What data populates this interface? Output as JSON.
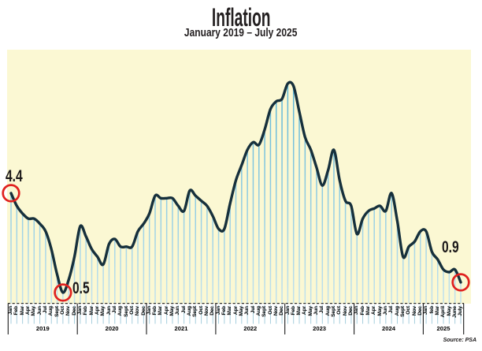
{
  "title": "Inflation",
  "subtitle": "January 2019 – July 2025",
  "source": "Source: PSA",
  "colors": {
    "plot_bg": "#fbf8d3",
    "stem_top": "#4fb0d4",
    "stem_bottom": "#c2e2ee",
    "strip_tick": "#a5cedd",
    "line": "#16303c",
    "highlight_circle": "#e0211f",
    "axis": "#1a1a1a"
  },
  "chart_data": {
    "type": "line",
    "title": "Inflation",
    "subtitle": "January 2019 – July 2025",
    "ylabel": "",
    "xlabel": "",
    "ylim": [
      0,
      9.9
    ],
    "grid": false,
    "legend": "none",
    "style": "smoothed line over vertical monthly stems",
    "x_axis": {
      "years": [
        {
          "label": "2019",
          "months": [
            "Jan",
            "Feb",
            "Mar",
            "Apr",
            "May",
            "Jun",
            "Jul",
            "Aug",
            "Sept",
            "Oct",
            "Nov",
            "Dec"
          ]
        },
        {
          "label": "2020",
          "months": [
            "Jan",
            "Feb",
            "Mar",
            "Apr",
            "May",
            "Jun",
            "Jul",
            "Aug",
            "Sept",
            "Oct",
            "Nov",
            "Dec"
          ]
        },
        {
          "label": "2021",
          "months": [
            "Jan",
            "Feb",
            "Mar",
            "Apr",
            "May",
            "Jun",
            "Jul",
            "Aug",
            "Sept",
            "Oct",
            "Nov",
            "Dec"
          ]
        },
        {
          "label": "2022",
          "months": [
            "Jan",
            "Feb",
            "Mar",
            "Apr",
            "May",
            "Jun",
            "Jul",
            "Aug",
            "Sept",
            "Oct",
            "Nov",
            "Dec"
          ]
        },
        {
          "label": "2023",
          "months": [
            "Jan",
            "Feb",
            "Mar",
            "Apr",
            "May",
            "Jun",
            "Jul",
            "Aug",
            "Sept",
            "Oct",
            "Nov",
            "Dec"
          ]
        },
        {
          "label": "2024",
          "months": [
            "Jan",
            "Feb",
            "Mar",
            "Apr",
            "May",
            "Jun",
            "Jul",
            "Aug",
            "Sept",
            "Oct",
            "Nov",
            "Dec"
          ]
        },
        {
          "label": "2025",
          "months": [
            "Jan",
            "feb",
            "Mar",
            "April",
            "May",
            "June",
            "July"
          ]
        }
      ]
    },
    "series": [
      {
        "name": "inflation-rate-percent",
        "values": [
          4.4,
          3.9,
          3.6,
          3.4,
          3.4,
          3.2,
          2.9,
          2.2,
          1.2,
          0.5,
          1.0,
          1.9,
          3.1,
          2.7,
          2.2,
          1.9,
          1.6,
          2.4,
          2.6,
          2.3,
          2.3,
          2.3,
          2.9,
          3.2,
          3.6,
          4.3,
          4.2,
          4.2,
          4.2,
          3.9,
          3.7,
          4.5,
          4.3,
          4.1,
          3.9,
          3.5,
          3.0,
          3.0,
          4.0,
          4.9,
          5.5,
          6.1,
          6.4,
          6.3,
          6.9,
          7.7,
          8.0,
          8.1,
          8.7,
          8.6,
          7.6,
          6.6,
          6.1,
          5.4,
          4.7,
          5.3,
          6.1,
          4.9,
          4.1,
          3.9,
          2.8,
          3.4,
          3.7,
          3.8,
          3.9,
          3.7,
          4.4,
          3.3,
          1.9,
          2.3,
          2.5,
          2.9,
          2.9,
          2.1,
          1.8,
          1.4,
          1.3,
          1.4,
          0.9
        ]
      }
    ],
    "annotations": [
      {
        "label": "4.4",
        "month_index": 0,
        "value": 4.4
      },
      {
        "label": "0.5",
        "month_index": 9,
        "value": 0.5
      },
      {
        "label": "0.9",
        "month_index": 78,
        "value": 0.9
      }
    ]
  }
}
